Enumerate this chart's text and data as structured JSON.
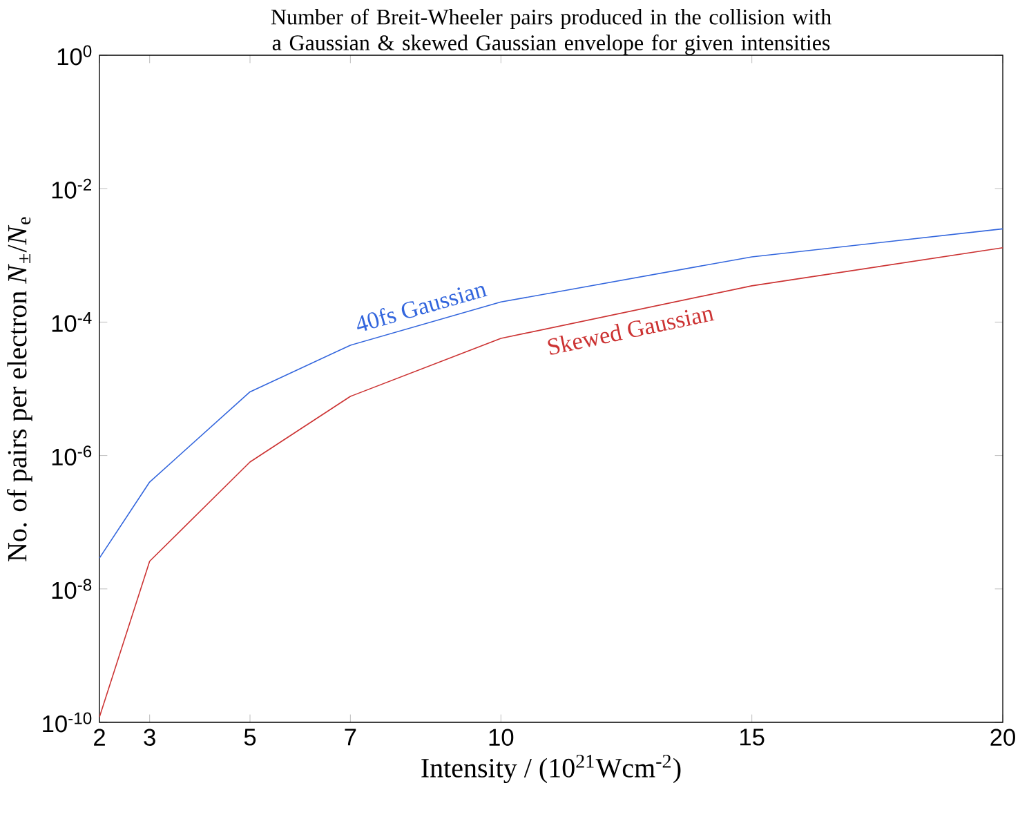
{
  "chart_data": {
    "type": "line",
    "title": "Number of Breit-Wheeler pairs produced in the collision with a Gaussian & skewed Gaussian envelope for given intensities",
    "xlabel": "Intensity / (10$^{21}$Wcm$^{-2}$)",
    "ylabel": "No. of pairs per electron *N*$_{±}$/*N*$_{e}$",
    "x": [
      2,
      3,
      5,
      7,
      10,
      15,
      20
    ],
    "series": [
      {
        "name": "40fs Gaussian",
        "color": "#3366dd",
        "values": [
          2.9e-08,
          4e-07,
          9e-06,
          4.5e-05,
          0.0002,
          0.00095,
          0.0025
        ]
      },
      {
        "name": "Skewed Gaussian",
        "color": "#cc3333",
        "values": [
          1.2e-10,
          2.6e-08,
          8e-07,
          7.7e-06,
          5.7e-05,
          0.00035,
          0.0013
        ]
      }
    ],
    "log": "y",
    "xlim": [
      2,
      20
    ],
    "ylim": [
      1e-10,
      1
    ],
    "xticks": [
      2,
      3,
      5,
      7,
      10,
      15,
      20
    ],
    "yticks": [
      {
        "value": 1e-10,
        "label": "10$^{-10}$"
      },
      {
        "value": 1e-08,
        "label": "10$^{-8}$"
      },
      {
        "value": 1e-06,
        "label": "10$^{-6}$"
      },
      {
        "value": 0.0001,
        "label": "10$^{-4}$"
      },
      {
        "value": 0.01,
        "label": "10$^{-2}$"
      },
      {
        "value": 1,
        "label": "10$^{0}$"
      }
    ],
    "grid": false,
    "legend": false,
    "marker": "none",
    "line_style": "solid"
  }
}
